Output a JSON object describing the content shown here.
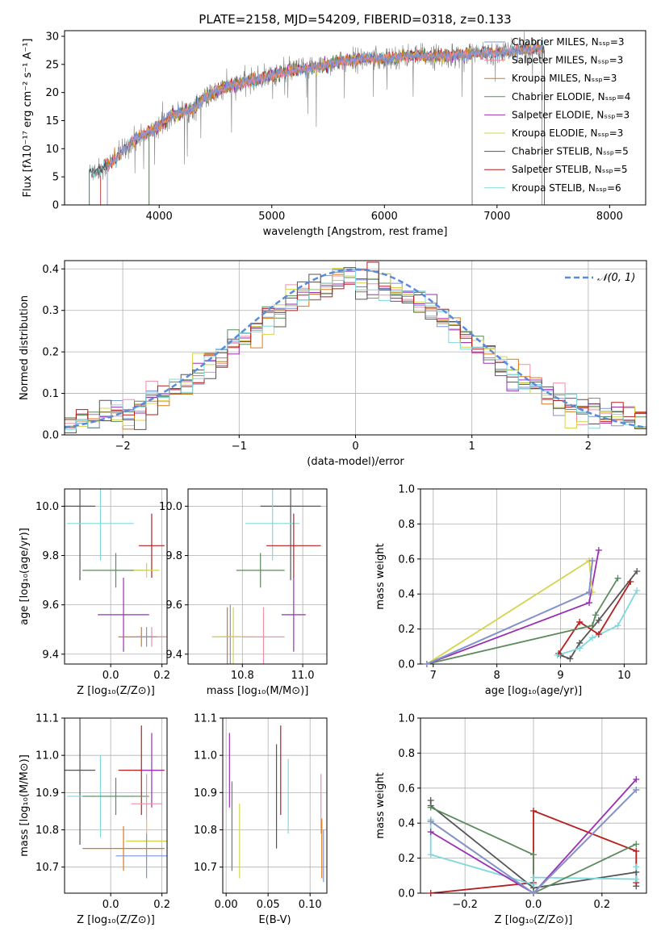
{
  "figure": {
    "title": "PLATE=2158, MJD=54209, FIBERID=0318, z=0.133"
  },
  "palette": {
    "Chabrier MILES": "#7b96d6",
    "Salpeter MILES": "#ef8fa6",
    "Kroupa MILES": "#d97a18",
    "Chabrier ELODIE": "#5c8a5c",
    "Salpeter ELODIE": "#9a2fb4",
    "Kroupa ELODIE": "#d4d44a",
    "Chabrier STELIB": "#555555",
    "Salpeter STELIB": "#b51f1f",
    "Kroupa STELIB": "#7fd8dd",
    "data": "#7f7f7f",
    "normal": "#5b8bd8",
    "grid": "#b0b0b0"
  },
  "chart_data": [
    {
      "id": "spectrum",
      "type": "line",
      "title": "PLATE=2158, MJD=54209, FIBERID=0318, z=0.133",
      "xlabel": "wavelength [Angstrom, rest frame]",
      "ylabel": "Flux [fλ10⁻¹⁷ erg cm⁻² s⁻¹ A⁻¹]",
      "xlim": [
        3160,
        8320
      ],
      "ylim": [
        0,
        31
      ],
      "xticks": [
        4000,
        5000,
        6000,
        7000,
        8000
      ],
      "yticks": [
        0,
        5,
        10,
        15,
        20,
        25,
        30
      ],
      "grid": false,
      "legend_position": "top-right",
      "legend": [
        "Chabrier MILES, Nₛₛₚ=3",
        "Salpeter MILES, Nₛₛₚ=3",
        "Kroupa MILES, Nₛₛₚ=3",
        "Chabrier ELODIE, Nₛₛₚ=4",
        "Salpeter ELODIE, Nₛₛₚ=3",
        "Kroupa ELODIE, Nₛₛₚ=3",
        "Chabrier STELIB, Nₛₛₚ=5",
        "Salpeter STELIB, Nₛₛₚ=5",
        "Kroupa STELIB, Nₛₛₚ=6"
      ],
      "continuum": [
        [
          3380,
          5.8
        ],
        [
          3500,
          6.5
        ],
        [
          3600,
          8
        ],
        [
          3700,
          10
        ],
        [
          3800,
          12
        ],
        [
          3900,
          12.8
        ],
        [
          4000,
          14
        ],
        [
          4100,
          16
        ],
        [
          4200,
          16.5
        ],
        [
          4300,
          17
        ],
        [
          4400,
          19
        ],
        [
          4500,
          20
        ],
        [
          4600,
          21
        ],
        [
          4700,
          21.5
        ],
        [
          4800,
          22
        ],
        [
          4900,
          22.5
        ],
        [
          5000,
          23
        ],
        [
          5200,
          24
        ],
        [
          5400,
          24.5
        ],
        [
          5600,
          25.5
        ],
        [
          5800,
          26
        ],
        [
          6000,
          26
        ],
        [
          6200,
          26.5
        ],
        [
          6400,
          26.5
        ],
        [
          6600,
          26.5
        ],
        [
          6800,
          27
        ],
        [
          7000,
          27
        ],
        [
          7200,
          27.5
        ],
        [
          7420,
          28
        ]
      ],
      "model_ranges": [
        {
          "name": "Salpeter STELIB",
          "x": [
            3480,
            7420
          ]
        },
        {
          "name": "Kroupa STELIB",
          "x": [
            3380,
            7420
          ]
        },
        {
          "name": "Chabrier STELIB",
          "x": [
            3380,
            7420
          ]
        },
        {
          "name": "Kroupa ELODIE",
          "x": [
            3910,
            6780
          ]
        },
        {
          "name": "Salpeter ELODIE",
          "x": [
            3910,
            6780
          ]
        },
        {
          "name": "Chabrier ELODIE",
          "x": [
            3910,
            6780
          ]
        },
        {
          "name": "Kroupa MILES",
          "x": [
            3540,
            7400
          ]
        },
        {
          "name": "Salpeter MILES",
          "x": [
            3540,
            7400
          ]
        },
        {
          "name": "Chabrier MILES",
          "x": [
            3540,
            7400
          ]
        }
      ]
    },
    {
      "id": "residuals",
      "type": "line",
      "xlabel": "(data-model)/error",
      "ylabel": "Normed distribution",
      "xlim": [
        -2.5,
        2.5
      ],
      "ylim": [
        0,
        0.42
      ],
      "xticks": [
        -2,
        -1,
        0,
        1,
        2
      ],
      "yticks": [
        0.0,
        0.1,
        0.2,
        0.3,
        0.4
      ],
      "grid": true,
      "legend_position": "top-right",
      "legend": [
        "𝒩(0, 1)"
      ],
      "bin_width": 0.1,
      "bin_start": -2.5,
      "hist_scale": 0.399
    },
    {
      "id": "age-vs-Z",
      "type": "scatter",
      "xlabel": "Z [log₁₀(Z/Z⊙)]",
      "ylabel": "age  [log₁₀(age/yr)]",
      "xlim": [
        -0.18,
        0.22
      ],
      "ylim": [
        9.36,
        10.07
      ],
      "xticks": [
        0.0,
        0.2
      ],
      "yticks": [
        9.4,
        9.6,
        9.8,
        10.0
      ],
      "grid": true,
      "points": [
        {
          "name": "Chabrier STELIB",
          "x": -0.12,
          "xerr": 0.06,
          "y": 10.0,
          "yerr": 0.3
        },
        {
          "name": "Kroupa STELIB",
          "x": -0.04,
          "xerr": 0.13,
          "y": 9.93,
          "yerr": 0.15
        },
        {
          "name": "Salpeter STELIB",
          "x": 0.16,
          "xerr": 0.05,
          "y": 9.84,
          "yerr": 0.13
        },
        {
          "name": "Chabrier ELODIE",
          "x": 0.02,
          "xerr": 0.13,
          "y": 9.74,
          "yerr": 0.07
        },
        {
          "name": "Kroupa ELODIE",
          "x": 0.14,
          "xerr": 0.05,
          "y": 9.74,
          "yerr": 0.03
        },
        {
          "name": "Salpeter ELODIE",
          "x": 0.05,
          "xerr": 0.1,
          "y": 9.56,
          "yerr": 0.15
        },
        {
          "name": "Kroupa MILES",
          "x": 0.12,
          "xerr": 0.09,
          "y": 9.47,
          "yerr": 0.04
        },
        {
          "name": "Salpeter MILES",
          "x": 0.16,
          "xerr": 0.06,
          "y": 9.47,
          "yerr": 0.04
        },
        {
          "name": "Chabrier MILES",
          "x": 0.14,
          "xerr": 0.04,
          "y": 9.47,
          "yerr": 0.04
        }
      ]
    },
    {
      "id": "age-vs-mass",
      "type": "scatter",
      "xlabel": "mass [log₁₀(M/M⊙)]",
      "ylabel": "",
      "xlim": [
        10.62,
        11.08
      ],
      "ylim": [
        9.36,
        10.07
      ],
      "xticks": [
        10.8,
        11.0
      ],
      "yticks": [
        9.4,
        9.6,
        9.8,
        10.0
      ],
      "grid": true,
      "points": [
        {
          "name": "Chabrier STELIB",
          "x": 10.96,
          "xerr": 0.1,
          "y": 10.0,
          "yerr": 0.3
        },
        {
          "name": "Kroupa STELIB",
          "x": 10.9,
          "xerr": 0.09,
          "y": 9.93,
          "yerr": 0.15
        },
        {
          "name": "Salpeter STELIB",
          "x": 10.97,
          "xerr": 0.09,
          "y": 9.84,
          "yerr": 0.13
        },
        {
          "name": "Chabrier ELODIE",
          "x": 10.86,
          "xerr": 0.08,
          "y": 9.74,
          "yerr": 0.07
        },
        {
          "name": "Salpeter ELODIE",
          "x": 10.97,
          "xerr": 0.04,
          "y": 9.56,
          "yerr": 0.15
        },
        {
          "name": "Chabrier MILES",
          "x": 10.76,
          "xerr": 0.03,
          "y": 9.47,
          "yerr": 0.13
        },
        {
          "name": "Kroupa MILES",
          "x": 10.75,
          "xerr": 0.05,
          "y": 9.47,
          "yerr": 0.12
        },
        {
          "name": "Kroupa ELODIE",
          "x": 10.77,
          "xerr": 0.07,
          "y": 9.47,
          "yerr": 0.12
        },
        {
          "name": "Salpeter MILES",
          "x": 10.87,
          "xerr": 0.07,
          "y": 9.47,
          "yerr": 0.12
        }
      ]
    },
    {
      "id": "massweight-vs-age",
      "type": "line",
      "xlabel": "age  [log₁₀(age/yr)]",
      "ylabel": "mass weight",
      "xlim": [
        6.8,
        10.35
      ],
      "ylim": [
        0,
        1.0
      ],
      "xticks": [
        7,
        8,
        9,
        10
      ],
      "yticks": [
        0.0,
        0.2,
        0.4,
        0.6,
        0.8,
        1.0
      ],
      "grid": true,
      "series": [
        {
          "name": "Chabrier STELIB",
          "x": [
            9.0,
            9.15,
            9.3,
            9.6,
            10.2
          ],
          "y": [
            0.05,
            0.03,
            0.12,
            0.25,
            0.53
          ]
        },
        {
          "name": "Salpeter STELIB",
          "x": [
            8.97,
            9.3,
            9.6,
            10.1
          ],
          "y": [
            0.06,
            0.24,
            0.17,
            0.47
          ]
        },
        {
          "name": "Kroupa STELIB",
          "x": [
            8.95,
            9.3,
            9.5,
            9.9,
            10.2
          ],
          "y": [
            0.05,
            0.09,
            0.15,
            0.22,
            0.42
          ]
        },
        {
          "name": "Chabrier ELODIE",
          "x": [
            6.9,
            9.5,
            9.55,
            9.9
          ],
          "y": [
            0.0,
            0.22,
            0.28,
            0.49
          ]
        },
        {
          "name": "Salpeter ELODIE",
          "x": [
            6.9,
            9.45,
            9.6
          ],
          "y": [
            0.0,
            0.35,
            0.65
          ]
        },
        {
          "name": "Kroupa ELODIE",
          "x": [
            6.9,
            9.45,
            9.5
          ],
          "y": [
            0.0,
            0.59,
            0.41
          ]
        },
        {
          "name": "Kroupa MILES",
          "x": [
            6.9,
            9.45,
            9.5
          ],
          "y": [
            0.0,
            0.41,
            0.59
          ]
        },
        {
          "name": "Salpeter MILES",
          "x": [
            6.9,
            9.45,
            9.5
          ],
          "y": [
            0.0,
            0.41,
            0.59
          ]
        },
        {
          "name": "Chabrier MILES",
          "x": [
            6.9,
            9.45,
            9.5
          ],
          "y": [
            0.0,
            0.41,
            0.59
          ]
        }
      ]
    },
    {
      "id": "mass-vs-Z",
      "type": "scatter",
      "xlabel": "Z [log₁₀(Z/Z⊙)]",
      "ylabel": "mass [log₁₀(M/M⊙)]",
      "xlim": [
        -0.18,
        0.22
      ],
      "ylim": [
        10.63,
        11.1
      ],
      "xticks": [
        0.0,
        0.2
      ],
      "yticks": [
        10.7,
        10.8,
        10.9,
        11.0,
        11.1
      ],
      "grid": true,
      "points": [
        {
          "name": "Chabrier STELIB",
          "x": -0.12,
          "xerr": 0.06,
          "y": 10.96,
          "yerr": 0.2
        },
        {
          "name": "Salpeter STELIB",
          "x": 0.12,
          "xerr": 0.09,
          "y": 10.96,
          "yerr": 0.12
        },
        {
          "name": "Salpeter ELODIE",
          "x": 0.16,
          "xerr": 0.04,
          "y": 10.96,
          "yerr": 0.1
        },
        {
          "name": "Kroupa STELIB",
          "x": -0.04,
          "xerr": 0.13,
          "y": 10.89,
          "yerr": 0.11
        },
        {
          "name": "Chabrier ELODIE",
          "x": 0.02,
          "xerr": 0.13,
          "y": 10.89,
          "yerr": 0.05
        },
        {
          "name": "Salpeter MILES",
          "x": 0.14,
          "xerr": 0.06,
          "y": 10.87,
          "yerr": 0.08
        },
        {
          "name": "Kroupa ELODIE",
          "x": 0.14,
          "xerr": 0.08,
          "y": 10.77,
          "yerr": 0.06
        },
        {
          "name": "Kroupa MILES",
          "x": 0.05,
          "xerr": 0.16,
          "y": 10.75,
          "yerr": 0.06
        },
        {
          "name": "Chabrier MILES",
          "x": 0.14,
          "xerr": 0.12,
          "y": 10.73,
          "yerr": 0.06
        }
      ]
    },
    {
      "id": "mass-vs-ebv",
      "type": "scatter",
      "xlabel": "E(B-V)",
      "ylabel": "",
      "xlim": [
        -0.004,
        0.12
      ],
      "ylim": [
        10.63,
        11.1
      ],
      "xticks": [
        0.0,
        0.05,
        0.1
      ],
      "yticks": [
        10.7,
        10.8,
        10.9,
        11.0,
        11.1
      ],
      "grid": true,
      "points": [
        {
          "name": "Salpeter ELODIE",
          "x": 0.004,
          "y": 10.96,
          "yerr": 0.1
        },
        {
          "name": "Chabrier ELODIE",
          "x": 0.007,
          "y": 10.81,
          "yerr": 0.12
        },
        {
          "name": "Kroupa ELODIE",
          "x": 0.016,
          "y": 10.77,
          "yerr": 0.1
        },
        {
          "name": "Chabrier STELIB",
          "x": 0.06,
          "y": 10.89,
          "yerr": 0.14
        },
        {
          "name": "Salpeter STELIB",
          "x": 0.065,
          "y": 10.96,
          "yerr": 0.12
        },
        {
          "name": "Kroupa STELIB",
          "x": 0.074,
          "y": 10.89,
          "yerr": 0.1
        },
        {
          "name": "Salpeter MILES",
          "x": 0.113,
          "y": 10.87,
          "yerr": 0.08
        },
        {
          "name": "Kroupa MILES",
          "x": 0.114,
          "y": 10.75,
          "yerr": 0.08
        },
        {
          "name": "Chabrier MILES",
          "x": 0.116,
          "y": 10.73,
          "yerr": 0.07
        }
      ]
    },
    {
      "id": "massweight-vs-Z",
      "type": "line",
      "xlabel": "Z [log₁₀(Z/Z⊙)]",
      "ylabel": "mass weight",
      "xlim": [
        -0.33,
        0.33
      ],
      "ylim": [
        0,
        1.0
      ],
      "xticks": [
        -0.2,
        0.0,
        0.2
      ],
      "yticks": [
        0.0,
        0.2,
        0.4,
        0.6,
        0.8,
        1.0
      ],
      "grid": true,
      "series": [
        {
          "name": "Chabrier STELIB",
          "x": [
            -0.3,
            -0.3,
            0.0,
            0.3,
            0.3
          ],
          "y": [
            0.53,
            0.5,
            0.03,
            0.12,
            0.04
          ]
        },
        {
          "name": "Salpeter STELIB",
          "x": [
            -0.3,
            0.0,
            0.0,
            0.3,
            0.3
          ],
          "y": [
            0.0,
            0.06,
            0.47,
            0.24,
            0.06
          ]
        },
        {
          "name": "Kroupa STELIB",
          "x": [
            -0.3,
            -0.3,
            0.0,
            0.0,
            0.3,
            0.3
          ],
          "y": [
            0.42,
            0.22,
            0.05,
            0.09,
            0.08,
            0.15
          ]
        },
        {
          "name": "Chabrier ELODIE",
          "x": [
            -0.3,
            0.0,
            0.0,
            0.3
          ],
          "y": [
            0.49,
            0.22,
            0.0,
            0.28
          ]
        },
        {
          "name": "Salpeter ELODIE",
          "x": [
            -0.3,
            0.0,
            0.3
          ],
          "y": [
            0.35,
            0.0,
            0.65
          ]
        },
        {
          "name": "Kroupa ELODIE",
          "x": [
            -0.3,
            0.0,
            0.3
          ],
          "y": [
            0.41,
            0.0,
            0.59
          ]
        },
        {
          "name": "Kroupa MILES",
          "x": [
            -0.3,
            0.0,
            0.3
          ],
          "y": [
            0.41,
            0.0,
            0.59
          ]
        },
        {
          "name": "Salpeter MILES",
          "x": [
            -0.3,
            0.0,
            0.3
          ],
          "y": [
            0.41,
            0.0,
            0.59
          ]
        },
        {
          "name": "Chabrier MILES",
          "x": [
            -0.3,
            0.0,
            0.3
          ],
          "y": [
            0.41,
            0.0,
            0.59
          ]
        }
      ]
    }
  ]
}
